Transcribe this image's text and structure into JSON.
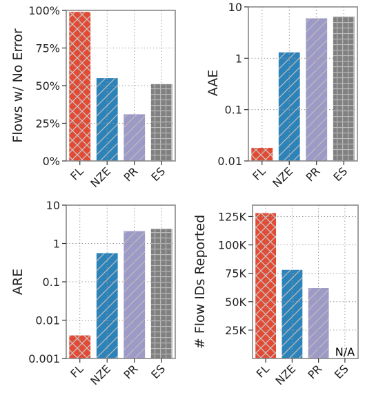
{
  "chart_data": [
    {
      "type": "bar",
      "categories": [
        "FL",
        "NZE",
        "PR",
        "ES"
      ],
      "values": [
        99,
        55,
        31,
        51
      ],
      "ylabel": "Flows w/ No Error",
      "yscale": "linear",
      "ylim": [
        0,
        100
      ],
      "yticks": [
        0,
        25,
        50,
        75,
        100
      ],
      "yticklabels": [
        "0%",
        "25%",
        "50%",
        "75%",
        "100%"
      ],
      "grid": true
    },
    {
      "type": "bar",
      "categories": [
        "FL",
        "NZE",
        "PR",
        "ES"
      ],
      "values": [
        0.018,
        1.3,
        6.0,
        6.5
      ],
      "ylabel": "AAE",
      "yscale": "log",
      "ylim": [
        0.01,
        10
      ],
      "yticks": [
        0.01,
        0.1,
        1,
        10
      ],
      "yticklabels": [
        "0.01",
        "0.1",
        "1",
        "10"
      ],
      "grid": true
    },
    {
      "type": "bar",
      "categories": [
        "FL",
        "NZE",
        "PR",
        "ES"
      ],
      "values": [
        0.004,
        0.56,
        2.1,
        2.4
      ],
      "ylabel": "ARE",
      "yscale": "log",
      "ylim": [
        0.001,
        10
      ],
      "yticks": [
        0.001,
        0.01,
        0.1,
        1,
        10
      ],
      "yticklabels": [
        "0.001",
        "0.01",
        "0.1",
        "1",
        "10"
      ],
      "grid": true
    },
    {
      "type": "bar",
      "categories": [
        "FL",
        "NZE",
        "PR",
        "ES"
      ],
      "values": [
        128000,
        78000,
        62000,
        null
      ],
      "ylabel": "# Flow IDs Reported",
      "yscale": "linear",
      "ylim": [
        0,
        135000
      ],
      "yticks": [
        25000,
        50000,
        75000,
        100000,
        125000
      ],
      "yticklabels": [
        "25K",
        "50K",
        "75K",
        "100K",
        "125K"
      ],
      "annotations": [
        "N/A"
      ],
      "grid": true
    }
  ],
  "style": {
    "bar_colors": [
      "#e34a33",
      "#2b83ba",
      "#9e9ac8",
      "#808080"
    ],
    "bar_hatches": [
      "crosshatch",
      "diagonal",
      "diagonal",
      "grid"
    ],
    "hatch_color": "#bbbbbb",
    "axis_color": "#888888",
    "grid_color": "#999999"
  }
}
